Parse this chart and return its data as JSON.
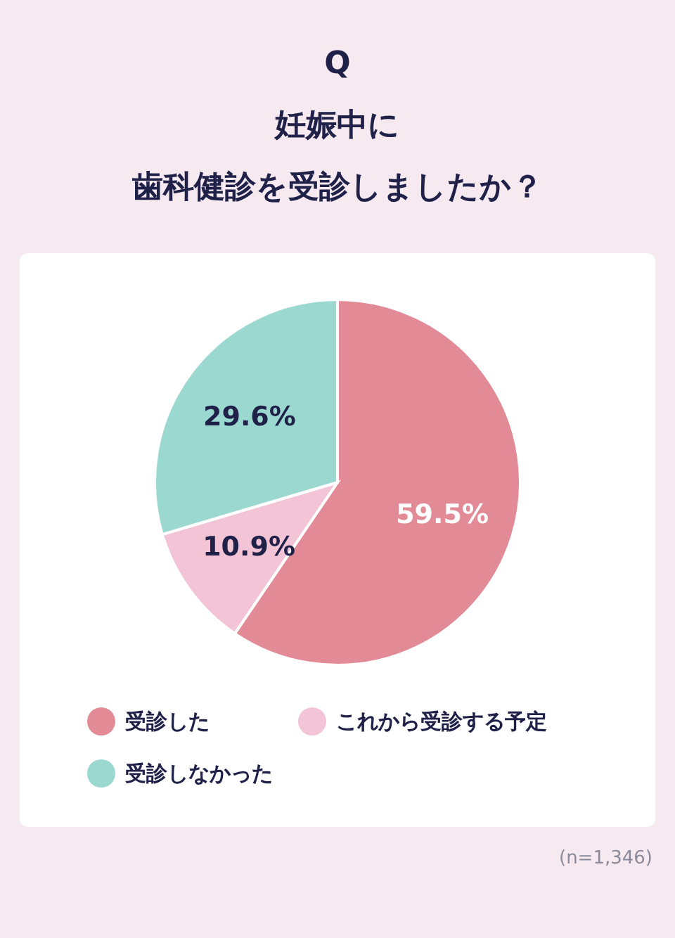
{
  "chart_data": {
    "type": "pie",
    "title": "妊娠中に",
    "subtitle": "歯科健診を受診しましたか？",
    "categories": [
      "受診した",
      "これから受診する予定",
      "受診しなかった"
    ],
    "values": [
      59.5,
      10.9,
      29.6
    ],
    "colors": [
      "#e28a96",
      "#f2c4d6",
      "#9ad8d0"
    ],
    "value_labels": [
      "59.5%",
      "10.9%",
      "29.6%"
    ],
    "legend": "bottom",
    "annotations": [
      "Q",
      "(n=1,346)"
    ]
  }
}
